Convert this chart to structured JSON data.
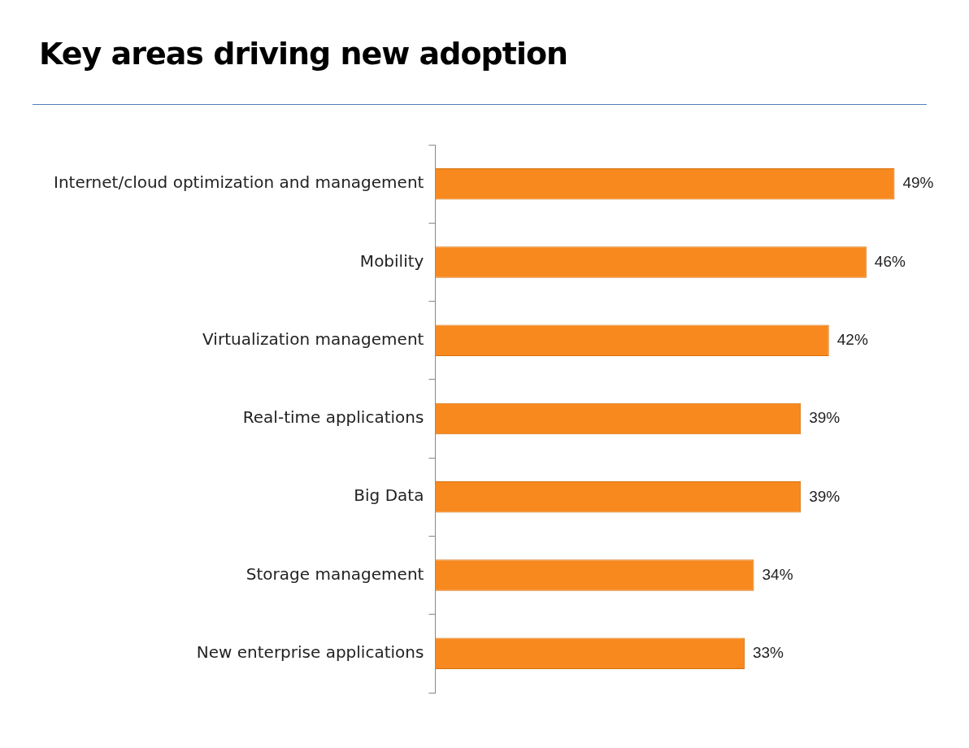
{
  "chart_data": {
    "type": "bar",
    "orientation": "horizontal",
    "title": "Key areas driving new adoption",
    "categories": [
      "Internet/cloud optimization and management",
      "Mobility",
      "Virtualization management",
      "Real-time applications",
      "Big Data",
      "Storage management",
      "New enterprise applications"
    ],
    "values": [
      49,
      46,
      42,
      39,
      39,
      34,
      33
    ],
    "value_labels": [
      "49%",
      "46%",
      "42%",
      "39%",
      "39%",
      "34%",
      "33%"
    ],
    "color": "#f7891e",
    "legend": false,
    "tick_labels": "y"
  }
}
